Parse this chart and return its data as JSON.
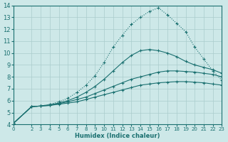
{
  "background_color": "#cde8e8",
  "grid_color": "#aacccc",
  "line_color": "#1a7070",
  "xlabel": "Humidex (Indice chaleur)",
  "xlim": [
    0,
    23
  ],
  "ylim": [
    4,
    14
  ],
  "xticks": [
    0,
    2,
    3,
    4,
    5,
    6,
    7,
    8,
    9,
    10,
    11,
    12,
    13,
    14,
    15,
    16,
    17,
    18,
    19,
    20,
    21,
    22,
    23
  ],
  "yticks": [
    4,
    5,
    6,
    7,
    8,
    9,
    10,
    11,
    12,
    13,
    14
  ],
  "line1_x": [
    0,
    2,
    3,
    4,
    5,
    6,
    7,
    8,
    9,
    10,
    11,
    12,
    13,
    14,
    15,
    16,
    17,
    18,
    19,
    20,
    21,
    22,
    23
  ],
  "line1_y": [
    4.1,
    5.5,
    5.55,
    5.6,
    5.7,
    5.8,
    5.9,
    6.1,
    6.3,
    6.5,
    6.7,
    6.9,
    7.1,
    7.3,
    7.4,
    7.5,
    7.55,
    7.6,
    7.6,
    7.55,
    7.5,
    7.4,
    7.3
  ],
  "line2_x": [
    0,
    2,
    3,
    4,
    5,
    6,
    7,
    8,
    9,
    10,
    11,
    12,
    13,
    14,
    15,
    16,
    17,
    18,
    19,
    20,
    21,
    22,
    23
  ],
  "line2_y": [
    4.1,
    5.5,
    5.55,
    5.6,
    5.75,
    5.9,
    6.1,
    6.3,
    6.6,
    6.9,
    7.2,
    7.5,
    7.8,
    8.0,
    8.2,
    8.4,
    8.5,
    8.5,
    8.45,
    8.4,
    8.3,
    8.2,
    8.0
  ],
  "line3_x": [
    0,
    2,
    3,
    4,
    5,
    6,
    7,
    8,
    9,
    10,
    11,
    12,
    13,
    14,
    15,
    16,
    17,
    18,
    19,
    20,
    21,
    22,
    23
  ],
  "line3_y": [
    4.1,
    5.5,
    5.55,
    5.65,
    5.8,
    6.0,
    6.3,
    6.7,
    7.2,
    7.8,
    8.5,
    9.2,
    9.8,
    10.2,
    10.3,
    10.2,
    10.0,
    9.7,
    9.3,
    9.0,
    8.8,
    8.6,
    8.3
  ],
  "line4_x": [
    0,
    2,
    3,
    4,
    5,
    6,
    7,
    8,
    9,
    10,
    11,
    12,
    13,
    14,
    15,
    16,
    17,
    18,
    19,
    20,
    21,
    22,
    23
  ],
  "line4_y": [
    4.1,
    5.5,
    5.55,
    5.7,
    5.9,
    6.2,
    6.7,
    7.3,
    8.1,
    9.2,
    10.5,
    11.5,
    12.4,
    13.0,
    13.5,
    13.8,
    13.2,
    12.5,
    11.8,
    10.5,
    9.5,
    8.5,
    7.7
  ]
}
